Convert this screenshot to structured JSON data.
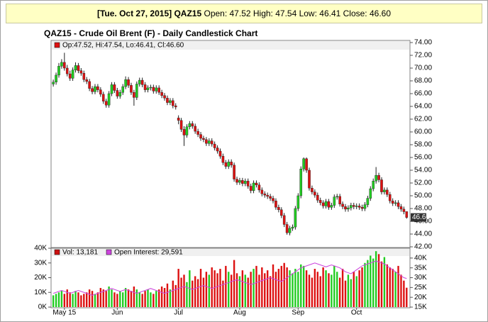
{
  "header": {
    "date_symbol": "[Tue. Oct 27, 2015] QAZ15",
    "ohlc": "Open: 47.52 High: 47.54 Low: 46.41 Close: 46.60"
  },
  "chart_data": [
    {
      "type": "candlestick",
      "title": "QAZ15 - Crude Oil Brent (F) - Daily Candlestick Chart",
      "legend_text": "Op:47.52, Hi:47.54, Lo:46.41, Cl:46.60",
      "up_color": "#22cc22",
      "down_color": "#dd1111",
      "grid": false,
      "last_price": {
        "value": 46.6,
        "label": "46.60"
      },
      "xlim": [
        -0.8,
        128.2
      ],
      "xticks": [
        {
          "value": 4,
          "label": "May 15"
        },
        {
          "value": 23,
          "label": "Jun"
        },
        {
          "value": 45,
          "label": "Jul"
        },
        {
          "value": 67,
          "label": "Aug"
        },
        {
          "value": 88,
          "label": "Sep"
        },
        {
          "value": 109,
          "label": "Oct"
        }
      ],
      "ylim": [
        42,
        74
      ],
      "yticks": [
        {
          "value": 42,
          "label": "42.00"
        },
        {
          "value": 44,
          "label": "44.00"
        },
        {
          "value": 46,
          "label": "46.00"
        },
        {
          "value": 48,
          "label": "48.00"
        },
        {
          "value": 50,
          "label": "50.00"
        },
        {
          "value": 52,
          "label": "52.00"
        },
        {
          "value": 54,
          "label": "54.00"
        },
        {
          "value": 56,
          "label": "56.00"
        },
        {
          "value": 58,
          "label": "58.00"
        },
        {
          "value": 60,
          "label": "60.00"
        },
        {
          "value": 62,
          "label": "62.00"
        },
        {
          "value": 64,
          "label": "64.00"
        },
        {
          "value": 66,
          "label": "66.00"
        },
        {
          "value": 68,
          "label": "68.00"
        },
        {
          "value": 70,
          "label": "70.00"
        },
        {
          "value": 72,
          "label": "72.00"
        },
        {
          "value": 74,
          "label": "74.00"
        }
      ],
      "open": [
        67.5,
        67.8,
        68.9,
        70.3,
        70.9,
        70.0,
        69.1,
        68.4,
        69.7,
        70.4,
        69.6,
        69.2,
        68.2,
        67.9,
        66.8,
        66.3,
        67.1,
        66.6,
        65.9,
        64.8,
        64.2,
        66.0,
        67.4,
        66.5,
        65.6,
        66.2,
        67.1,
        68.2,
        67.3,
        66.2,
        65.4,
        67.5,
        68.1,
        67.4,
        66.6,
        66.9,
        67.0,
        66.4,
        66.9,
        66.2,
        65.7,
        65.3,
        64.6,
        64.9,
        64.1,
        62.2,
        61.8,
        60.4,
        59.5,
        60.8,
        61.3,
        60.9,
        60.1,
        59.6,
        59.0,
        58.8,
        58.2,
        58.6,
        58.1,
        57.5,
        57.0,
        56.2,
        55.2,
        54.6,
        55.3,
        54.8,
        52.6,
        52.1,
        52.4,
        51.9,
        52.3,
        51.5,
        50.8,
        52.0,
        51.7,
        50.9,
        50.3,
        50.1,
        49.9,
        49.6,
        49.2,
        48.2,
        47.8,
        46.9,
        45.5,
        44.2,
        44.9,
        45.1,
        48.0,
        50.0,
        54.2,
        55.8,
        54.0,
        51.2,
        50.6,
        50.1,
        49.3,
        48.9,
        48.4,
        49.1,
        48.2,
        48.5,
        49.8,
        49.9,
        48.7,
        48.3,
        47.9,
        48.1,
        48.5,
        48.3,
        48.4,
        48.2,
        48.0,
        48.6,
        49.6,
        51.1,
        52.3,
        53.2,
        52.5,
        50.6,
        50.9,
        50.2,
        49.2,
        48.8,
        48.9,
        48.3,
        47.9,
        47.52
      ],
      "high": [
        68.2,
        69.3,
        70.8,
        71.4,
        72.4,
        70.5,
        69.6,
        70.1,
        70.9,
        70.8,
        70.0,
        69.6,
        68.6,
        68.3,
        67.2,
        67.5,
        67.5,
        67.0,
        66.3,
        65.2,
        66.4,
        67.8,
        67.8,
        66.9,
        66.6,
        67.5,
        68.7,
        68.6,
        67.7,
        66.6,
        67.9,
        68.5,
        68.5,
        67.8,
        67.3,
        67.4,
        67.4,
        67.3,
        67.3,
        66.6,
        66.1,
        65.7,
        65.3,
        65.3,
        64.5,
        62.6,
        62.2,
        60.9,
        61.2,
        61.7,
        61.7,
        61.3,
        60.5,
        60.0,
        59.4,
        59.2,
        59.0,
        59.0,
        58.5,
        57.9,
        57.4,
        56.6,
        55.6,
        55.7,
        55.7,
        55.2,
        53.0,
        52.8,
        52.8,
        52.7,
        52.7,
        51.9,
        52.4,
        52.4,
        52.1,
        51.3,
        50.7,
        50.5,
        50.3,
        50.0,
        49.6,
        48.6,
        48.2,
        47.3,
        45.9,
        45.3,
        45.5,
        48.4,
        50.4,
        54.6,
        56.0,
        56.0,
        54.4,
        51.6,
        51.0,
        50.5,
        49.7,
        49.3,
        49.5,
        49.5,
        48.9,
        50.2,
        50.3,
        50.3,
        49.1,
        48.7,
        48.5,
        48.9,
        48.9,
        48.8,
        48.8,
        48.6,
        49.0,
        50.0,
        51.5,
        52.7,
        54.5,
        53.6,
        52.9,
        51.3,
        51.3,
        50.6,
        49.6,
        49.3,
        49.3,
        48.7,
        48.3,
        47.54
      ],
      "low": [
        67.1,
        67.4,
        68.5,
        69.9,
        69.6,
        68.7,
        68.0,
        68.0,
        69.3,
        69.2,
        68.8,
        67.8,
        67.5,
        66.4,
        65.9,
        65.9,
        66.2,
        65.5,
        64.4,
        63.8,
        63.8,
        65.6,
        66.1,
        65.2,
        65.2,
        65.8,
        66.7,
        66.9,
        65.8,
        64.1,
        65.0,
        67.1,
        67.0,
        66.2,
        66.2,
        66.5,
        66.0,
        66.0,
        65.8,
        65.3,
        64.9,
        64.2,
        64.2,
        63.7,
        63.5,
        61.2,
        60.0,
        57.8,
        59.1,
        60.4,
        60.5,
        59.7,
        59.2,
        58.6,
        58.4,
        57.8,
        57.8,
        57.7,
        57.1,
        56.6,
        55.8,
        54.8,
        54.2,
        54.2,
        54.4,
        52.2,
        51.7,
        51.7,
        51.5,
        51.5,
        51.1,
        50.4,
        50.4,
        51.3,
        50.5,
        49.9,
        49.7,
        49.5,
        49.2,
        48.8,
        47.8,
        47.4,
        46.5,
        45.1,
        43.9,
        43.8,
        44.5,
        44.7,
        47.6,
        49.6,
        53.8,
        53.6,
        50.8,
        50.2,
        49.7,
        48.9,
        48.5,
        48.0,
        48.0,
        47.8,
        47.8,
        48.1,
        49.4,
        48.3,
        47.9,
        47.5,
        47.5,
        47.7,
        47.9,
        47.9,
        47.8,
        47.6,
        47.6,
        48.2,
        49.2,
        50.7,
        51.9,
        52.1,
        50.2,
        50.2,
        49.8,
        48.8,
        48.4,
        48.4,
        47.9,
        47.5,
        47.1,
        46.41
      ],
      "close": [
        67.8,
        68.9,
        70.3,
        70.9,
        70.0,
        69.1,
        68.4,
        69.7,
        70.4,
        69.6,
        69.2,
        68.2,
        67.9,
        66.8,
        66.3,
        67.1,
        66.6,
        65.9,
        64.8,
        64.2,
        66.0,
        67.4,
        66.5,
        65.6,
        66.2,
        67.1,
        68.2,
        67.3,
        66.2,
        65.4,
        67.5,
        68.1,
        67.4,
        66.6,
        66.9,
        67.0,
        66.4,
        66.9,
        66.2,
        65.7,
        65.3,
        64.6,
        64.9,
        64.1,
        63.9,
        61.8,
        60.4,
        59.5,
        60.8,
        61.3,
        60.9,
        60.1,
        59.6,
        59.0,
        58.8,
        58.2,
        58.6,
        58.1,
        57.5,
        57.0,
        56.2,
        55.2,
        54.6,
        55.3,
        54.8,
        52.6,
        52.1,
        52.4,
        51.9,
        52.3,
        51.5,
        50.8,
        52.0,
        51.7,
        50.9,
        50.3,
        50.1,
        49.9,
        49.6,
        49.2,
        48.2,
        47.8,
        46.9,
        45.5,
        44.2,
        44.9,
        45.1,
        48.0,
        50.0,
        54.2,
        55.8,
        54.0,
        51.2,
        50.6,
        50.1,
        49.3,
        48.9,
        48.4,
        49.1,
        48.2,
        48.5,
        49.8,
        49.9,
        48.7,
        48.3,
        47.9,
        48.1,
        48.5,
        48.3,
        48.4,
        48.2,
        48.0,
        48.6,
        49.6,
        51.1,
        52.3,
        53.2,
        52.5,
        50.6,
        50.9,
        50.2,
        49.2,
        48.8,
        48.9,
        48.3,
        47.9,
        47.5,
        46.6
      ]
    },
    {
      "type": "bar",
      "ylim": [
        0,
        40000
      ],
      "yticks": [
        {
          "value": 0,
          "label": "0K"
        },
        {
          "value": 10000,
          "label": "10K"
        },
        {
          "value": 20000,
          "label": "20K"
        },
        {
          "value": 30000,
          "label": "30K"
        },
        {
          "value": 40000,
          "label": "40K"
        }
      ],
      "y2lim": [
        15000,
        45000
      ],
      "y2ticks": [
        {
          "value": 15000,
          "label": "15K"
        },
        {
          "value": 20000,
          "label": "20K"
        },
        {
          "value": 25000,
          "label": "25K"
        },
        {
          "value": 30000,
          "label": "30K"
        },
        {
          "value": 35000,
          "label": "35K"
        },
        {
          "value": 40000,
          "label": "40K"
        }
      ],
      "series": [
        {
          "name": "Vol: 13,181",
          "color": "#cc1111",
          "values": [
            8000,
            9000,
            10000,
            11000,
            9000,
            12000,
            10000,
            9000,
            11000,
            10000,
            8000,
            9000,
            10000,
            12000,
            11000,
            9000,
            10000,
            13000,
            12000,
            11000,
            14000,
            12000,
            10000,
            9000,
            11000,
            10000,
            13000,
            12000,
            11000,
            14000,
            12000,
            10000,
            9000,
            11000,
            12000,
            10000,
            9000,
            11000,
            12000,
            14000,
            13000,
            16000,
            12000,
            18000,
            15000,
            26000,
            20000,
            22000,
            17000,
            25000,
            18000,
            21000,
            19000,
            26000,
            20000,
            24000,
            22000,
            27000,
            25000,
            23000,
            26000,
            18000,
            28000,
            24000,
            22000,
            32000,
            23000,
            21000,
            25000,
            22000,
            20000,
            24000,
            26000,
            28000,
            22000,
            27000,
            23000,
            25000,
            21000,
            29000,
            24000,
            26000,
            28000,
            30000,
            27000,
            25000,
            23000,
            26000,
            24000,
            29000,
            28000,
            25000,
            22000,
            20000,
            26000,
            24000,
            21000,
            27000,
            25000,
            23000,
            22000,
            28000,
            24000,
            20000,
            26000,
            18000,
            22000,
            19000,
            24000,
            21000,
            25000,
            27000,
            30000,
            32000,
            35000,
            33000,
            38000,
            36000,
            31000,
            34000,
            29000,
            27000,
            26000,
            24000,
            28000,
            22000,
            18000,
            13181
          ]
        },
        {
          "name": "Open Interest: 29,591",
          "color": "#cc44dd",
          "axis": "y2",
          "values": [
            22000,
            22500,
            23000,
            23500,
            23000,
            22500,
            22000,
            22500,
            23000,
            23500,
            23000,
            22500,
            22000,
            21500,
            21000,
            21500,
            22000,
            22500,
            23000,
            23500,
            24000,
            24500,
            24000,
            23500,
            23000,
            23500,
            24000,
            23500,
            23000,
            22500,
            22000,
            22500,
            23000,
            23500,
            24000,
            24500,
            24000,
            23500,
            23000,
            22500,
            22000,
            22500,
            23000,
            23500,
            24000,
            24500,
            25000,
            25500,
            25000,
            24500,
            24000,
            24500,
            25000,
            25500,
            26000,
            25500,
            25000,
            24500,
            25000,
            25500,
            26000,
            26500,
            27000,
            27500,
            28000,
            28500,
            29000,
            28500,
            28000,
            27500,
            27000,
            26500,
            27000,
            27500,
            28000,
            28500,
            29000,
            29500,
            30000,
            29500,
            29000,
            28500,
            28000,
            29000,
            30000,
            31000,
            32000,
            33000,
            34000,
            35000,
            35500,
            36000,
            36500,
            37000,
            37500,
            37000,
            36500,
            36000,
            35500,
            36000,
            36500,
            36000,
            35500,
            35000,
            34000,
            33000,
            32500,
            32000,
            33000,
            34000,
            35000,
            36000,
            36500,
            37000,
            37500,
            38000,
            38500,
            38000,
            37500,
            37000,
            36000,
            35000,
            34000,
            33000,
            32000,
            31000,
            30000,
            29591
          ]
        }
      ]
    }
  ]
}
